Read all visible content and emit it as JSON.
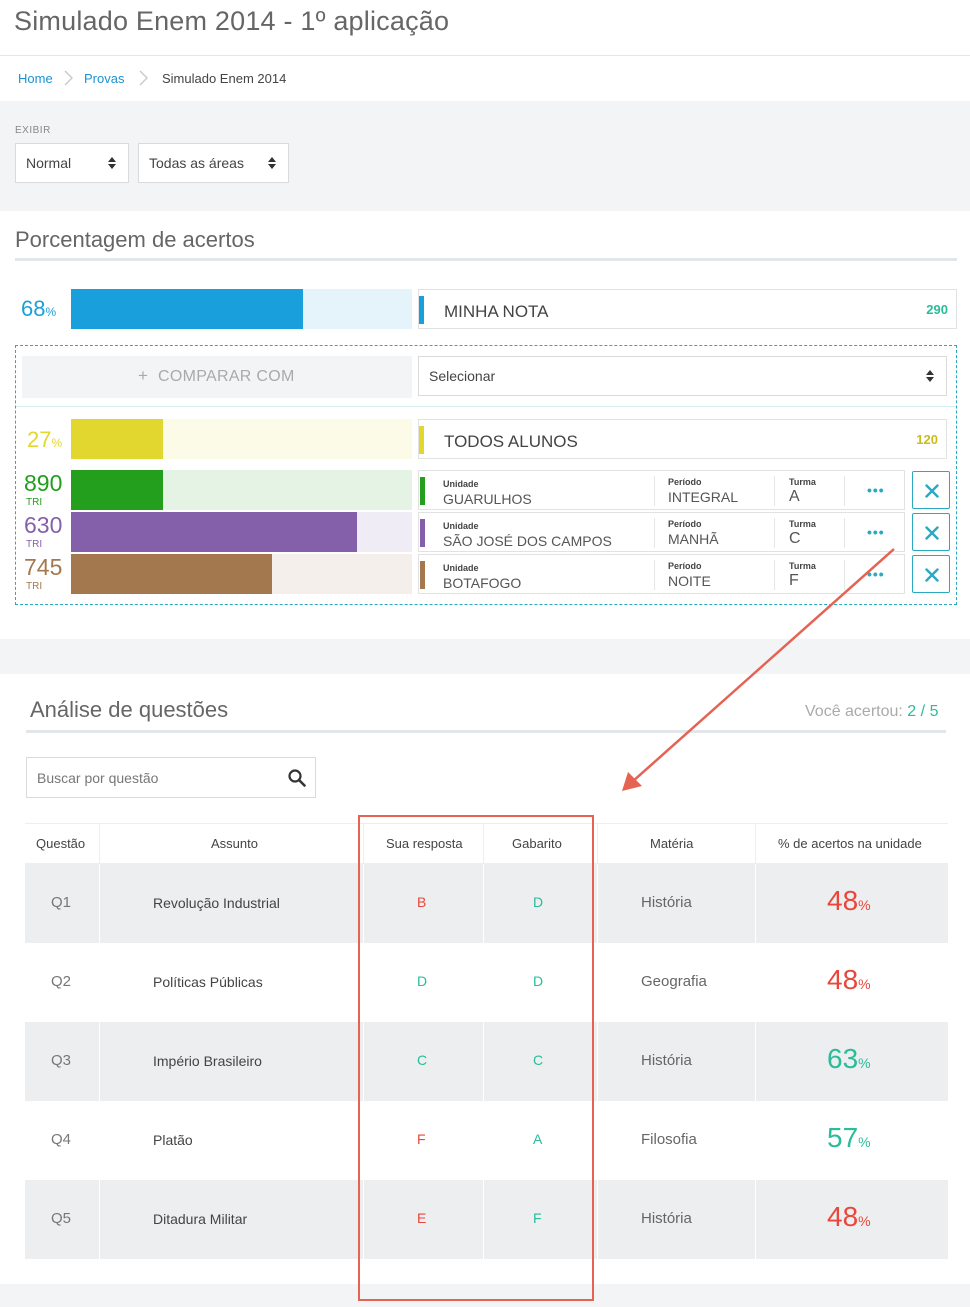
{
  "header": {
    "title": "Simulado Enem 2014 - 1º aplicação"
  },
  "breadcrumb": {
    "items": [
      "Home",
      "Provas",
      "Simulado Enem 2014"
    ]
  },
  "filters": {
    "label": "EXIBIR",
    "mode_select": "Normal",
    "area_select": "Todas as áreas"
  },
  "percent_section": {
    "title": "Porcentagem de acertos",
    "my_grade": {
      "pct": "68",
      "pct_unit": "%",
      "fill": 0.68,
      "label": "MINHA NOTA",
      "value": "290",
      "color": "#1a9fdd"
    },
    "compare": {
      "label": "COMPARAR COM",
      "plus": "+",
      "select_placeholder": "Selecionar"
    },
    "all_students": {
      "pct": "27",
      "pct_unit": "%",
      "fill": 0.27,
      "label": "TODOS ALUNOS",
      "value": "120",
      "color": "#e2d72f"
    },
    "units": [
      {
        "tri": "890",
        "tri_label": "TRI",
        "fill": 0.27,
        "color": "#239e1d",
        "unidade_label": "Unidade",
        "unidade": "GUARULHOS",
        "periodo_label": "Período",
        "periodo": "INTEGRAL",
        "turma_label": "Turma",
        "turma": "A",
        "more": "•••"
      },
      {
        "tri": "630",
        "tri_label": "TRI",
        "fill": 0.84,
        "color": "#8560aa",
        "unidade_label": "Unidade",
        "unidade": "SÃO JOSÉ DOS CAMPOS",
        "periodo_label": "Período",
        "periodo": "MANHÃ",
        "turma_label": "Turma",
        "turma": "C",
        "more": "•••"
      },
      {
        "tri": "745",
        "tri_label": "TRI",
        "fill": 0.59,
        "color": "#a4784f",
        "unidade_label": "Unidade",
        "unidade": "BOTAFOGO",
        "periodo_label": "Período",
        "periodo": "NOITE",
        "turma_label": "Turma",
        "turma": "F",
        "more": "•••"
      }
    ]
  },
  "analysis": {
    "title": "Análise de questões",
    "score_label": "Você acertou:",
    "score_correct": "2",
    "score_sep": "/",
    "score_total": "5",
    "search_placeholder": "Buscar por questão",
    "columns": [
      "Questão",
      "Assunto",
      "Sua resposta",
      "Gabarito",
      "Matéria",
      "% de acertos na unidade"
    ],
    "rows": [
      {
        "q": "Q1",
        "assunto": "Revolução Industrial",
        "resposta": "B",
        "gabarito": "D",
        "materia": "História",
        "pct": "48",
        "unit": "%",
        "correct": false,
        "pct_high": false
      },
      {
        "q": "Q2",
        "assunto": "Políticas Públicas",
        "resposta": "D",
        "gabarito": "D",
        "materia": "Geografia",
        "pct": "48",
        "unit": "%",
        "correct": true,
        "pct_high": false
      },
      {
        "q": "Q3",
        "assunto": "Império Brasileiro",
        "resposta": "C",
        "gabarito": "C",
        "materia": "História",
        "pct": "63",
        "unit": "%",
        "correct": true,
        "pct_high": true
      },
      {
        "q": "Q4",
        "assunto": "Platão",
        "resposta": "F",
        "gabarito": "A",
        "materia": "Filosofia",
        "pct": "57",
        "unit": "%",
        "correct": false,
        "pct_high": true
      },
      {
        "q": "Q5",
        "assunto": "Ditadura Militar",
        "resposta": "E",
        "gabarito": "F",
        "materia": "História",
        "pct": "48",
        "unit": "%",
        "correct": false,
        "pct_high": false
      }
    ]
  },
  "colors": {
    "accent": "#2aa9c0",
    "correct": "#2bbc9a",
    "wrong": "#e8473c",
    "annotation": "#e56353"
  }
}
